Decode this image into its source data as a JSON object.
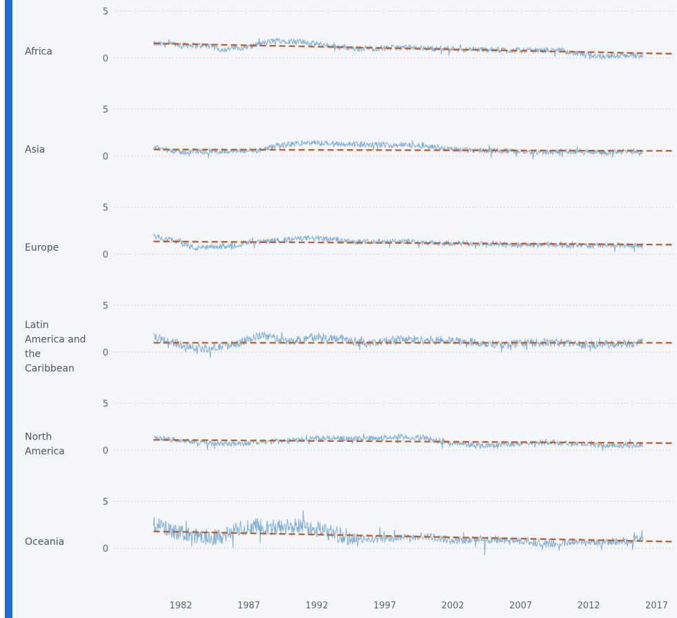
{
  "chart_data": {
    "type": "line",
    "title": "",
    "xlabel": "",
    "ylabel": "",
    "x_ticks": [
      "1982",
      "1987",
      "1992",
      "1997",
      "2002",
      "2007",
      "2012",
      "2017"
    ],
    "y_ticks": [
      "5",
      "0"
    ],
    "ylim": [
      0,
      5
    ],
    "xlim": [
      1978.0,
      2018.0
    ],
    "grid": true,
    "colors": {
      "series": "#7fb0d8",
      "trend": "#c0602c",
      "grid": "#c9d2dd",
      "accent_bar": "#1f6fd1"
    },
    "series": [
      {
        "name": "Africa",
        "points": [
          [
            1980,
            1.5
          ],
          [
            1982,
            1.4
          ],
          [
            1984,
            1.3
          ],
          [
            1985,
            0.9
          ],
          [
            1987,
            1.2
          ],
          [
            1989,
            1.9
          ],
          [
            1991,
            1.7
          ],
          [
            1993,
            1.3
          ],
          [
            1995,
            1.0
          ],
          [
            1998,
            1.1
          ],
          [
            2001,
            1.0
          ],
          [
            2004,
            0.9
          ],
          [
            2007,
            0.8
          ],
          [
            2010,
            0.8
          ],
          [
            2011,
            0.5
          ],
          [
            2013,
            0.2
          ],
          [
            2016,
            0.3
          ]
        ],
        "trend": [
          [
            1980,
            1.55
          ],
          [
            2018,
            0.45
          ]
        ]
      },
      {
        "name": "Asia",
        "points": [
          [
            1980,
            0.9
          ],
          [
            1982,
            0.4
          ],
          [
            1984,
            0.5
          ],
          [
            1986,
            0.5
          ],
          [
            1988,
            0.6
          ],
          [
            1989,
            1.1
          ],
          [
            1991,
            1.4
          ],
          [
            1993,
            1.4
          ],
          [
            1995,
            1.2
          ],
          [
            1998,
            1.2
          ],
          [
            2000,
            1.1
          ],
          [
            2002,
            0.7
          ],
          [
            2005,
            0.6
          ],
          [
            2008,
            0.4
          ],
          [
            2010,
            0.5
          ],
          [
            2013,
            0.4
          ],
          [
            2016,
            0.5
          ]
        ],
        "trend": [
          [
            1980,
            0.7
          ],
          [
            2018,
            0.55
          ]
        ]
      },
      {
        "name": "Europe",
        "points": [
          [
            1980,
            1.9
          ],
          [
            1982,
            1.3
          ],
          [
            1983,
            0.6
          ],
          [
            1985,
            0.8
          ],
          [
            1987,
            1.2
          ],
          [
            1989,
            1.4
          ],
          [
            1991,
            1.7
          ],
          [
            1993,
            1.6
          ],
          [
            1995,
            1.3
          ],
          [
            1998,
            1.4
          ],
          [
            2000,
            1.2
          ],
          [
            2003,
            1.1
          ],
          [
            2006,
            1.0
          ],
          [
            2009,
            1.0
          ],
          [
            2012,
            0.9
          ],
          [
            2016,
            0.9
          ]
        ],
        "trend": [
          [
            1980,
            1.35
          ],
          [
            2018,
            1.0
          ]
        ]
      },
      {
        "name": "Latin\nAmerica and\nthe\nCaribbean",
        "points": [
          [
            1980,
            1.6
          ],
          [
            1982,
            0.8
          ],
          [
            1984,
            0.3
          ],
          [
            1986,
            0.9
          ],
          [
            1988,
            1.8
          ],
          [
            1990,
            1.1
          ],
          [
            1992,
            1.7
          ],
          [
            1994,
            1.3
          ],
          [
            1996,
            0.9
          ],
          [
            1998,
            1.4
          ],
          [
            2000,
            1.3
          ],
          [
            2002,
            1.2
          ],
          [
            2004,
            1.0
          ],
          [
            2006,
            0.8
          ],
          [
            2008,
            1.0
          ],
          [
            2010,
            1.0
          ],
          [
            2012,
            0.8
          ],
          [
            2016,
            1.0
          ]
        ],
        "trend": [
          [
            1980,
            1.0
          ],
          [
            2018,
            1.0
          ]
        ]
      },
      {
        "name": "North\nAmerica",
        "points": [
          [
            1980,
            1.3
          ],
          [
            1982,
            1.1
          ],
          [
            1984,
            0.8
          ],
          [
            1986,
            0.7
          ],
          [
            1988,
            0.9
          ],
          [
            1990,
            1.0
          ],
          [
            1992,
            1.3
          ],
          [
            1995,
            1.2
          ],
          [
            1998,
            1.4
          ],
          [
            2000,
            1.3
          ],
          [
            2002,
            0.7
          ],
          [
            2004,
            0.5
          ],
          [
            2006,
            0.6
          ],
          [
            2009,
            0.9
          ],
          [
            2011,
            0.7
          ],
          [
            2013,
            0.5
          ],
          [
            2016,
            0.6
          ]
        ],
        "trend": [
          [
            1980,
            1.1
          ],
          [
            2018,
            0.75
          ]
        ]
      },
      {
        "name": "Oceania",
        "points": [
          [
            1980,
            2.6
          ],
          [
            1982,
            1.5
          ],
          [
            1983,
            1.2
          ],
          [
            1985,
            1.3
          ],
          [
            1987,
            2.4
          ],
          [
            1989,
            2.2
          ],
          [
            1991,
            2.4
          ],
          [
            1993,
            1.7
          ],
          [
            1995,
            0.9
          ],
          [
            1997,
            1.0
          ],
          [
            2000,
            1.3
          ],
          [
            2002,
            0.8
          ],
          [
            2004,
            1.0
          ],
          [
            2007,
            0.8
          ],
          [
            2009,
            0.4
          ],
          [
            2011,
            0.7
          ],
          [
            2013,
            0.6
          ],
          [
            2016,
            1.0
          ]
        ],
        "trend": [
          [
            1980,
            1.8
          ],
          [
            2018,
            0.7
          ]
        ]
      }
    ]
  }
}
